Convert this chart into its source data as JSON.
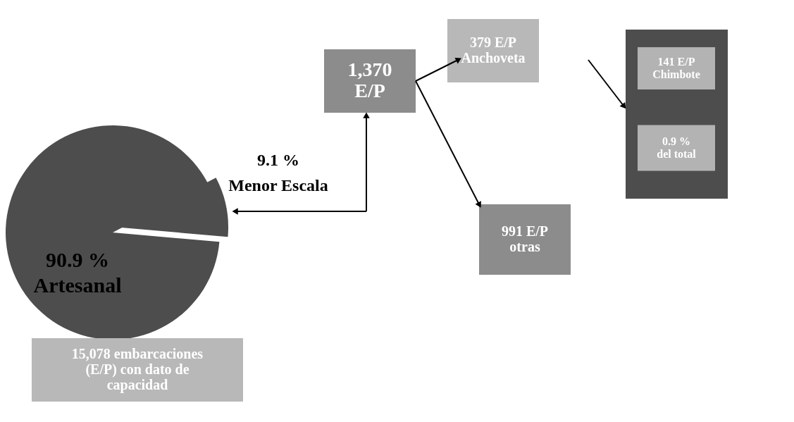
{
  "chart_data": {
    "type": "pie",
    "categories": [
      "Artesanal",
      "Menor Escala"
    ],
    "values": [
      90.9,
      9.1
    ],
    "value_labels": [
      "90.9 %",
      "9.1 %"
    ],
    "colors": [
      "#4d4d4d",
      "#4d4d4d"
    ],
    "annotations": [
      "1,370\nE/P",
      "379 E/P\nAnchoveta",
      "991 E/P\notras",
      "141 E/P\nChimbote",
      "0.9 %\ndel total",
      "15,078 embarcaciones\n(E/P) con dato de\ncapacidad"
    ]
  }
}
